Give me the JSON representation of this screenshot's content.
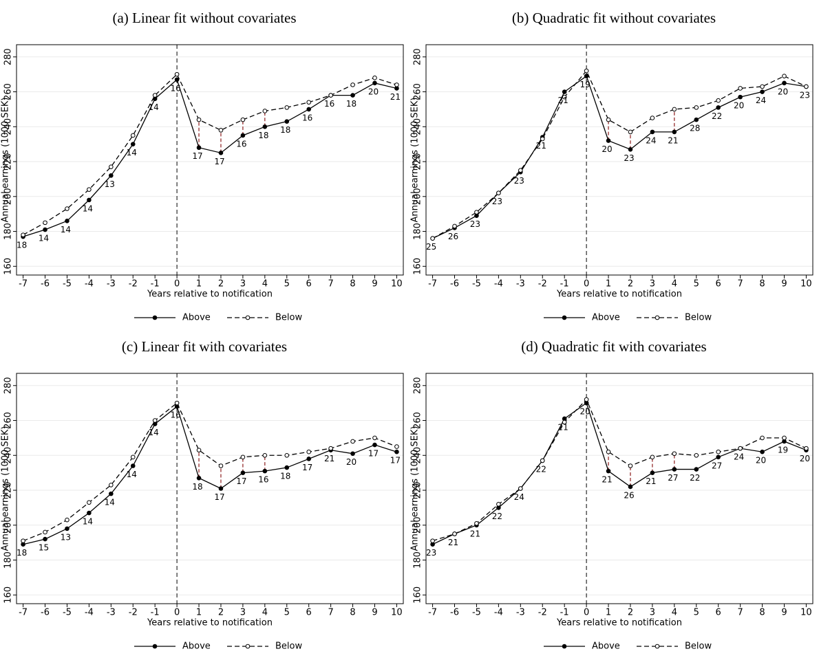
{
  "chart_data": [
    {
      "type": "line",
      "title": "(a) Linear fit without covariates",
      "x_label": "Years relative to notification",
      "y_label": "Annual earnings (1000 SEK)",
      "x": [
        -7,
        -6,
        -5,
        -4,
        -3,
        -2,
        -1,
        0,
        1,
        2,
        3,
        4,
        5,
        6,
        7,
        8,
        9,
        10
      ],
      "series": [
        {
          "name": "Above",
          "color": "#000000",
          "line_style": "solid",
          "marker_fill": "#000000",
          "values": [
            177,
            181,
            186,
            198,
            212,
            230,
            256,
            267,
            228,
            225,
            235,
            240,
            243,
            250,
            258,
            258,
            265,
            262
          ]
        },
        {
          "name": "Below",
          "color": "#000000",
          "line_style": "dashed",
          "marker_fill": "#ffffff",
          "values": [
            178,
            185,
            193,
            204,
            217,
            235,
            258,
            270,
            244,
            238,
            244,
            249,
            251,
            254,
            258,
            264,
            268,
            264
          ]
        }
      ],
      "point_labels": [
        18,
        14,
        14,
        14,
        13,
        14,
        14,
        16,
        17,
        17,
        16,
        18,
        18,
        16,
        16,
        18,
        20,
        21
      ],
      "gap_x": [
        1,
        2,
        3,
        4
      ],
      "gap_color": "#8b1a1a",
      "xlim": [
        -7.3,
        10.3
      ],
      "xticks": [
        -7,
        -6,
        -5,
        -4,
        -3,
        -2,
        -1,
        0,
        1,
        2,
        3,
        4,
        5,
        6,
        7,
        8,
        9,
        10
      ],
      "vline_x": 0,
      "ylim": [
        155,
        287
      ],
      "yticks": [
        160,
        180,
        200,
        220,
        240,
        260,
        280
      ],
      "grid": true,
      "legend": "bottom"
    },
    {
      "type": "line",
      "title": "(b) Quadratic fit without covariates",
      "x_label": "Years relative to notification",
      "y_label": "Annual earnings (1000 SEK)",
      "x": [
        -7,
        -6,
        -5,
        -4,
        -3,
        -2,
        -1,
        0,
        1,
        2,
        3,
        4,
        5,
        6,
        7,
        8,
        9,
        10
      ],
      "series": [
        {
          "name": "Above",
          "color": "#000000",
          "line_style": "solid",
          "marker_fill": "#000000",
          "values": [
            176,
            182,
            189,
            202,
            214,
            234,
            260,
            269,
            232,
            227,
            237,
            237,
            244,
            251,
            257,
            260,
            265,
            263
          ]
        },
        {
          "name": "Below",
          "color": "#000000",
          "line_style": "dashed",
          "marker_fill": "#ffffff",
          "values": [
            176,
            183,
            191,
            202,
            215,
            233,
            257,
            272,
            244,
            237,
            245,
            250,
            251,
            255,
            262,
            263,
            269,
            263
          ]
        }
      ],
      "point_labels": [
        25,
        26,
        23,
        23,
        23,
        21,
        21,
        19,
        20,
        23,
        24,
        21,
        28,
        22,
        20,
        24,
        20,
        23
      ],
      "gap_x": [
        1,
        2,
        4
      ],
      "gap_color": "#8b1a1a",
      "xlim": [
        -7.3,
        10.3
      ],
      "xticks": [
        -7,
        -6,
        -5,
        -4,
        -3,
        -2,
        -1,
        0,
        1,
        2,
        3,
        4,
        5,
        6,
        7,
        8,
        9,
        10
      ],
      "vline_x": 0,
      "ylim": [
        155,
        287
      ],
      "yticks": [
        160,
        180,
        200,
        220,
        240,
        260,
        280
      ],
      "grid": true,
      "legend": "bottom"
    },
    {
      "type": "line",
      "title": "(c) Linear fit with covariates",
      "x_label": "Years relative to notification",
      "y_label": "Annual earnings (1000 SEK)",
      "x": [
        -7,
        -6,
        -5,
        -4,
        -3,
        -2,
        -1,
        0,
        1,
        2,
        3,
        4,
        5,
        6,
        7,
        8,
        9,
        10
      ],
      "series": [
        {
          "name": "Above",
          "color": "#000000",
          "line_style": "solid",
          "marker_fill": "#000000",
          "values": [
            189,
            192,
            198,
            207,
            218,
            234,
            258,
            268,
            227,
            221,
            230,
            231,
            233,
            238,
            243,
            241,
            246,
            242
          ]
        },
        {
          "name": "Below",
          "color": "#000000",
          "line_style": "dashed",
          "marker_fill": "#ffffff",
          "values": [
            191,
            196,
            203,
            213,
            223,
            239,
            260,
            270,
            243,
            234,
            239,
            240,
            240,
            242,
            244,
            248,
            250,
            245
          ]
        }
      ],
      "point_labels": [
        18,
        15,
        13,
        14,
        14,
        14,
        14,
        16,
        18,
        17,
        17,
        16,
        18,
        17,
        21,
        20,
        17,
        17
      ],
      "gap_x": [
        1,
        2,
        3,
        4
      ],
      "gap_color": "#8b1a1a",
      "xlim": [
        -7.3,
        10.3
      ],
      "xticks": [
        -7,
        -6,
        -5,
        -4,
        -3,
        -2,
        -1,
        0,
        1,
        2,
        3,
        4,
        5,
        6,
        7,
        8,
        9,
        10
      ],
      "vline_x": 0,
      "ylim": [
        155,
        287
      ],
      "yticks": [
        160,
        180,
        200,
        220,
        240,
        260,
        280
      ],
      "grid": true,
      "legend": "bottom"
    },
    {
      "type": "line",
      "title": "(d) Quadratic fit with covariates",
      "x_label": "Years relative to notification",
      "y_label": "Annual earnings (1000 SEK)",
      "x": [
        -7,
        -6,
        -5,
        -4,
        -3,
        -2,
        -1,
        0,
        1,
        2,
        3,
        4,
        5,
        6,
        7,
        8,
        9,
        10
      ],
      "series": [
        {
          "name": "Above",
          "color": "#000000",
          "line_style": "solid",
          "marker_fill": "#000000",
          "values": [
            189,
            195,
            200,
            210,
            221,
            237,
            261,
            270,
            231,
            222,
            230,
            232,
            232,
            239,
            244,
            242,
            248,
            243
          ]
        },
        {
          "name": "Below",
          "color": "#000000",
          "line_style": "dashed",
          "marker_fill": "#ffffff",
          "values": [
            191,
            195,
            201,
            212,
            221,
            237,
            259,
            272,
            242,
            234,
            239,
            241,
            240,
            242,
            244,
            250,
            250,
            244
          ]
        }
      ],
      "point_labels": [
        23,
        21,
        21,
        22,
        24,
        22,
        21,
        20,
        21,
        26,
        21,
        27,
        22,
        27,
        24,
        20,
        19,
        20
      ],
      "gap_x": [
        1,
        2,
        3,
        4
      ],
      "gap_color": "#8b1a1a",
      "xlim": [
        -7.3,
        10.3
      ],
      "xticks": [
        -7,
        -6,
        -5,
        -4,
        -3,
        -2,
        -1,
        0,
        1,
        2,
        3,
        4,
        5,
        6,
        7,
        8,
        9,
        10
      ],
      "vline_x": 0,
      "ylim": [
        155,
        287
      ],
      "yticks": [
        160,
        180,
        200,
        220,
        240,
        260,
        280
      ],
      "grid": true,
      "legend": "bottom"
    }
  ]
}
